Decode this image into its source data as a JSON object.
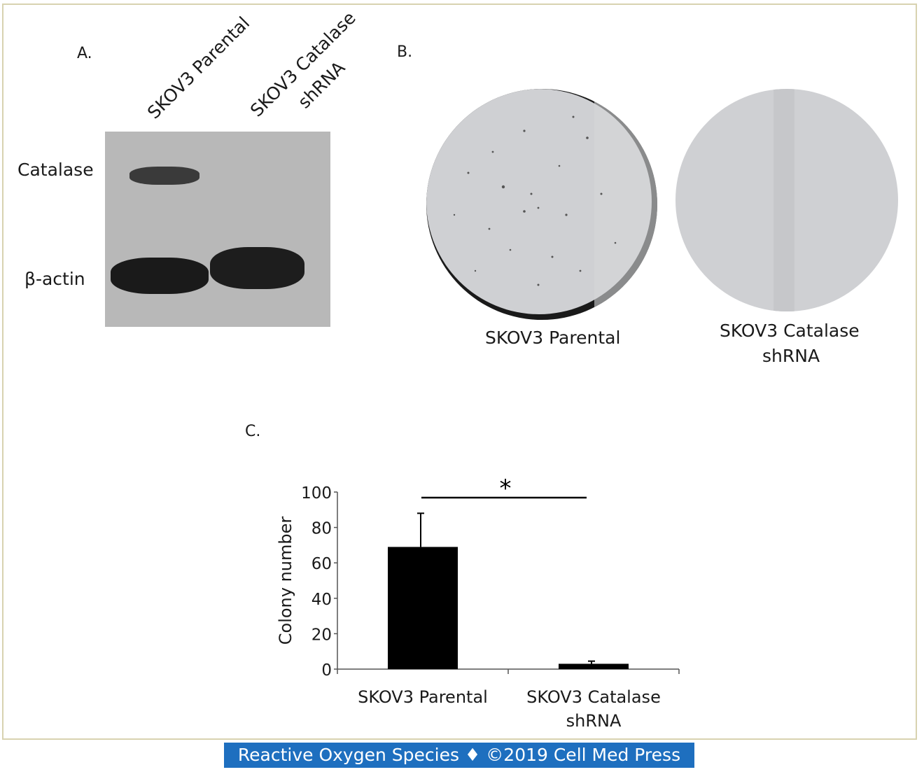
{
  "panel_a": {
    "label": "A.",
    "lane_labels": [
      "SKOV3 Parental",
      "SKOV3 Catalase",
      "shRNA"
    ],
    "row_labels": {
      "catalase": "Catalase",
      "beta_actin": "β-actin"
    }
  },
  "panel_b": {
    "label": "B.",
    "dish_labels": {
      "parental": "SKOV3 Parental",
      "catalase_line1": "SKOV3 Catalase",
      "catalase_line2": "shRNA"
    }
  },
  "panel_c": {
    "label": "C."
  },
  "chart_data": {
    "type": "bar",
    "ylabel": "Colony number",
    "xlabel": "",
    "ylim": [
      0,
      100
    ],
    "yticks": [
      0,
      20,
      40,
      60,
      80,
      100
    ],
    "categories": [
      "SKOV3 Parental",
      "SKOV3 Catalase shRNA"
    ],
    "category_lines": [
      [
        "SKOV3 Parental"
      ],
      [
        "SKOV3 Catalase",
        "shRNA"
      ]
    ],
    "values": [
      69,
      3
    ],
    "error": [
      19,
      1.5
    ],
    "significance": {
      "between": [
        0,
        1
      ],
      "label": "*"
    },
    "bar_color": "#000000"
  },
  "footer": {
    "text": "Reactive Oxygen Species ♦ ©2019 Cell Med Press",
    "background": "#1e6fbf"
  }
}
